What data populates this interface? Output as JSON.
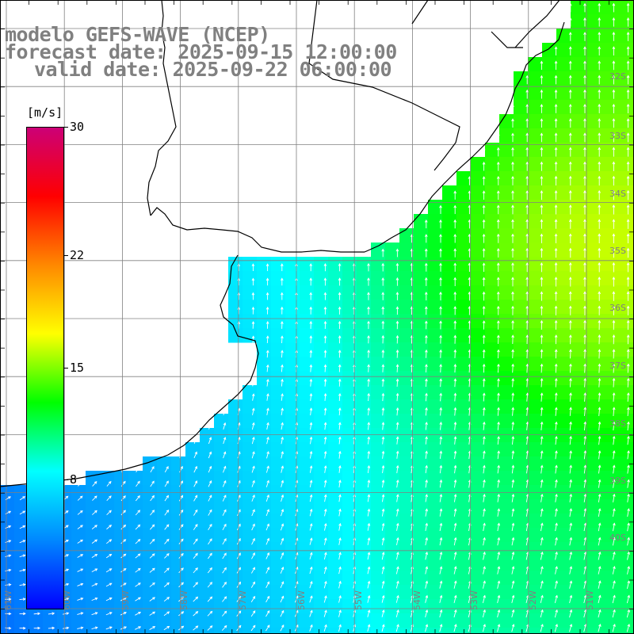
{
  "title": {
    "model": "modelo GEFS-WAVE (NCEP)",
    "forecast": "forecast date: 2025-09-15 12:00:00",
    "valid": "valid date: 2025-09-22 06:00:00"
  },
  "colorbar": {
    "unit": "[m/s]",
    "min": 0,
    "max": 30,
    "tick_labels": [
      "30",
      "22",
      "15",
      "8"
    ],
    "tick_values": [
      30,
      22,
      15,
      8
    ],
    "colors": [
      "#0000ff",
      "#0088ff",
      "#00ffff",
      "#00ff00",
      "#ffff00",
      "#ff8800",
      "#ff0000",
      "#cc0077"
    ]
  },
  "map": {
    "variable": "wind speed and direction",
    "region": "Rio de la Plata / Uruguay / Buenos Aires coast",
    "lat_labels": [
      "32S",
      "33S",
      "34S",
      "35S",
      "36S",
      "37S",
      "38S",
      "39S",
      "40S"
    ],
    "lon_labels": [
      "61W",
      "60W",
      "59W",
      "58W",
      "57W",
      "56W",
      "55W",
      "54W",
      "53W",
      "52W",
      "51W"
    ],
    "land_color": "#ffffff",
    "grid_color": "#808080",
    "coast_color": "#000000"
  }
}
